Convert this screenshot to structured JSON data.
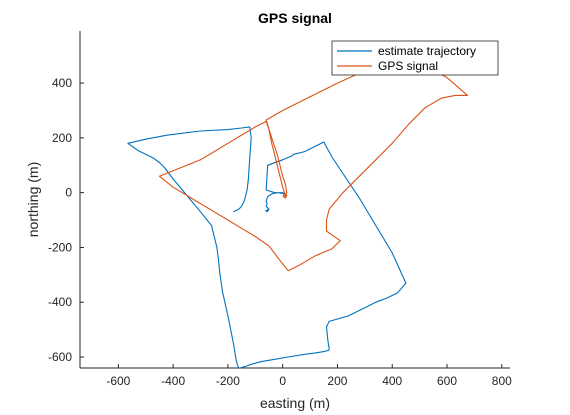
{
  "chart_data": {
    "type": "line",
    "title": "GPS signal",
    "xlabel": "easting (m)",
    "ylabel": "northing (m)",
    "xlim": [
      -740,
      830
    ],
    "ylim": [
      -640,
      590
    ],
    "xticks": [
      -600,
      -400,
      -200,
      0,
      200,
      400,
      600,
      800
    ],
    "yticks": [
      -600,
      -400,
      -200,
      0,
      200,
      400
    ],
    "grid": false,
    "legend_position": "top-right",
    "series": [
      {
        "name": "estimate trajectory",
        "color": "#0072BD",
        "x": [
          -55,
          -55,
          -62,
          -57,
          -50,
          -55,
          -60,
          -57,
          -60,
          -55,
          -40,
          -20,
          0,
          5,
          5,
          0,
          -15,
          -25,
          -30,
          -60,
          -55,
          0,
          35,
          40,
          80,
          150,
          180,
          220,
          280,
          340,
          400,
          450,
          420,
          380,
          340,
          290,
          240,
          170,
          160,
          165,
          170,
          168,
          150,
          120,
          80,
          20,
          -40,
          -80,
          -120,
          -135,
          -150,
          -160,
          -165,
          -170,
          -180,
          -200,
          -220,
          -230,
          -235,
          -240,
          -250,
          -260,
          -300,
          -350,
          -400,
          -430,
          -450,
          -470,
          -500,
          -530,
          -565,
          -500,
          -420,
          -300,
          -200,
          -150,
          -120,
          -115,
          -120,
          -125,
          -130,
          -140,
          -150,
          -160,
          -170,
          -180
        ],
        "y": [
          -60,
          -65,
          -65,
          -70,
          -60,
          -55,
          -50,
          -40,
          -30,
          -15,
          -5,
          0,
          0,
          -3,
          -5,
          -3,
          0,
          0,
          0,
          10,
          100,
          120,
          135,
          140,
          150,
          185,
          130,
          70,
          -20,
          -120,
          -220,
          -330,
          -365,
          -385,
          -400,
          -425,
          -450,
          -470,
          -490,
          -540,
          -570,
          -575,
          -580,
          -585,
          -590,
          -600,
          -610,
          -617,
          -628,
          -634,
          -638,
          -641,
          -630,
          -610,
          -550,
          -450,
          -360,
          -290,
          -240,
          -200,
          -160,
          -120,
          -70,
          -10,
          50,
          90,
          110,
          125,
          140,
          155,
          180,
          195,
          210,
          225,
          230,
          236,
          240,
          200,
          130,
          50,
          10,
          -30,
          -50,
          -60,
          -65,
          -70
        ]
      },
      {
        "name": "GPS signal",
        "color": "#D95319",
        "x": [
          15,
          10,
          5,
          10,
          15,
          12,
          8,
          0,
          -15,
          -30,
          -40,
          -50,
          -60,
          -100,
          -150,
          -200,
          -250,
          -300,
          -350,
          -400,
          -450,
          -400,
          -350,
          -300,
          -250,
          -200,
          -150,
          -100,
          -50,
          0,
          20,
          60,
          120,
          180,
          210,
          180,
          160,
          160,
          170,
          220,
          280,
          340,
          400,
          460,
          520,
          580,
          630,
          675,
          600,
          510,
          450,
          420,
          380,
          300,
          200,
          100,
          0,
          -60,
          -40,
          -20,
          -10,
          0,
          10,
          15,
          5,
          0
        ],
        "y": [
          -10,
          -20,
          -15,
          -5,
          -10,
          -15,
          -5,
          20,
          80,
          140,
          180,
          230,
          260,
          240,
          210,
          180,
          150,
          120,
          100,
          80,
          60,
          20,
          -10,
          -40,
          -70,
          -100,
          -130,
          -160,
          -195,
          -260,
          -285,
          -265,
          -230,
          -205,
          -175,
          -155,
          -140,
          -100,
          -60,
          0,
          60,
          120,
          180,
          250,
          310,
          345,
          355,
          355,
          420,
          470,
          495,
          490,
          480,
          445,
          400,
          350,
          300,
          265,
          200,
          140,
          100,
          60,
          30,
          0,
          -10,
          -15
        ]
      }
    ]
  }
}
